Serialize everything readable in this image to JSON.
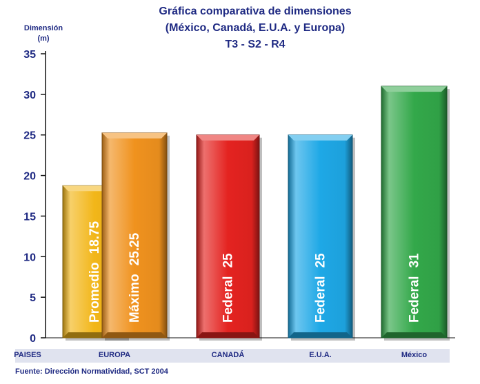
{
  "title": {
    "line1": "Gráfica comparativa de dimensiones",
    "line2": "(México, Canadá, E.U.A. y Europa)",
    "line3": "T3 - S2 - R4"
  },
  "y_axis_label": {
    "line1": "Dimensión",
    "line2": "(m)"
  },
  "x_axis_header": "PAISES",
  "source": "Fuente: Dirección Normatividad, SCT 2004",
  "chart_data": {
    "type": "bar",
    "title": "Gráfica comparativa de dimensiones (México, Canadá, E.U.A. y Europa) T3 - S2 - R4",
    "ylabel": "Dimensión (m)",
    "xlabel": "PAISES",
    "ylim": [
      0,
      35
    ],
    "yticks": [
      0,
      5,
      10,
      15,
      20,
      25,
      30,
      35
    ],
    "categories": [
      "EUROPA",
      "CANADÁ",
      "E.U.A.",
      "México"
    ],
    "bars": [
      {
        "category": "EUROPA",
        "label": "Promedio",
        "value": 18.75,
        "value_text": "18.75",
        "color": "#f2b619"
      },
      {
        "category": "EUROPA",
        "label": "Máximo",
        "value": 25.25,
        "value_text": "25.25",
        "color": "#f0921e"
      },
      {
        "category": "CANADÁ",
        "label": "Federal",
        "value": 25,
        "value_text": "25",
        "color": "#e42320"
      },
      {
        "category": "E.U.A.",
        "label": "Federal",
        "value": 25,
        "value_text": "25",
        "color": "#1ea8e6"
      },
      {
        "category": "México",
        "label": "Federal",
        "value": 31,
        "value_text": "31",
        "color": "#33a84a"
      }
    ],
    "grid": false
  }
}
